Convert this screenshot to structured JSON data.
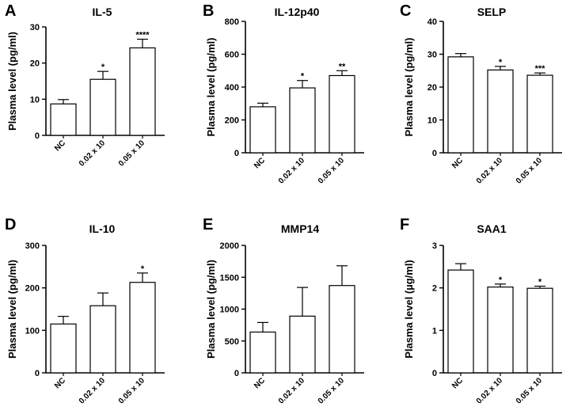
{
  "chart_data": [
    {
      "type": "bar",
      "letter": "A",
      "title": "IL-5",
      "ylabel": "Plasma level (pg/ml)",
      "ylim": [
        0,
        30
      ],
      "yticks": [
        0,
        10,
        20,
        30
      ],
      "categories": [
        "NC",
        "0.02 x 10",
        "0.05 x 10"
      ],
      "values": [
        8.7,
        15.5,
        24.2
      ],
      "errors": [
        1.2,
        2.2,
        2.4
      ],
      "significance": [
        "",
        "*",
        "****"
      ]
    },
    {
      "type": "bar",
      "letter": "B",
      "title": "IL-12p40",
      "ylabel": "Plasma level (pg/ml)",
      "ylim": [
        0,
        800
      ],
      "yticks": [
        0,
        200,
        400,
        600,
        800
      ],
      "categories": [
        "NC",
        "0.02 x 10",
        "0.05 x 10"
      ],
      "values": [
        280,
        395,
        470
      ],
      "errors": [
        22,
        45,
        30
      ],
      "significance": [
        "",
        "*",
        "**"
      ]
    },
    {
      "type": "bar",
      "letter": "C",
      "title": "SELP",
      "ylabel": "Plasma level (pg/ml)",
      "ylim": [
        0,
        40
      ],
      "yticks": [
        0,
        10,
        20,
        30,
        40
      ],
      "categories": [
        "NC",
        "0.02 x 10",
        "0.05 x 10"
      ],
      "values": [
        29.2,
        25.2,
        23.6
      ],
      "errors": [
        1.0,
        1.1,
        0.7
      ],
      "significance": [
        "",
        "*",
        "***"
      ]
    },
    {
      "type": "bar",
      "letter": "D",
      "title": "IL-10",
      "ylabel": "Plasma level (pg/ml)",
      "ylim": [
        0,
        300
      ],
      "yticks": [
        0,
        100,
        200,
        300
      ],
      "categories": [
        "NC",
        "0.02 x 10",
        "0.05 x 10"
      ],
      "values": [
        115,
        158,
        213
      ],
      "errors": [
        18,
        30,
        22
      ],
      "significance": [
        "",
        "",
        "*"
      ]
    },
    {
      "type": "bar",
      "letter": "E",
      "title": "MMP14",
      "ylabel": "Plasma level (pg/ml)",
      "ylim": [
        0,
        2000
      ],
      "yticks": [
        0,
        500,
        1000,
        1500,
        2000
      ],
      "categories": [
        "NC",
        "0.02 x 10",
        "0.05 x 10"
      ],
      "values": [
        640,
        890,
        1370
      ],
      "errors": [
        150,
        450,
        310
      ],
      "significance": [
        "",
        "",
        ""
      ]
    },
    {
      "type": "bar",
      "letter": "F",
      "title": "SAA1",
      "ylabel": "Plasma level (µg/ml)",
      "ylim": [
        0,
        3
      ],
      "yticks": [
        0,
        1,
        2,
        3
      ],
      "categories": [
        "NC",
        "0.02 x 10",
        "0.05 x 10"
      ],
      "values": [
        2.42,
        2.02,
        1.99
      ],
      "errors": [
        0.15,
        0.07,
        0.05
      ],
      "significance": [
        "",
        "*",
        "*"
      ]
    }
  ]
}
